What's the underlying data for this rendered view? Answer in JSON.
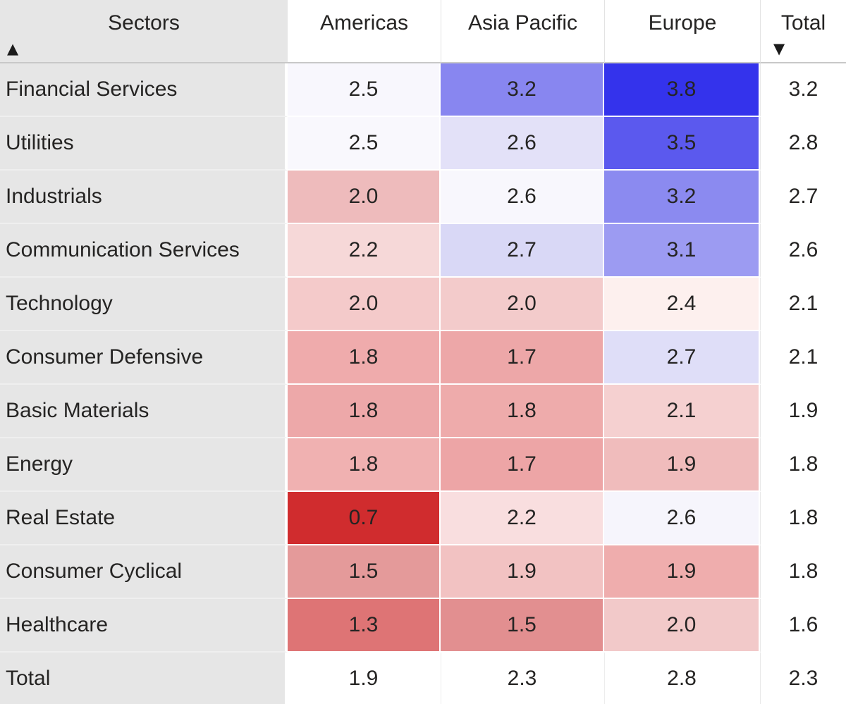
{
  "colors": {
    "row_header_bg": "#e6e6e6",
    "canvas_bg": "#ffffff",
    "header_underline": "#c8c8c8",
    "text": "#252423",
    "row_separator": "#efefef",
    "heat_low": "#d02c2e",
    "heat_mid": "#ffffff",
    "heat_high": "#3433ec"
  },
  "icons": {
    "sort_ascending": "▲",
    "sort_descending": "▼"
  },
  "header": {
    "row_group_label": "Sectors",
    "columns": [
      "Americas",
      "Asia Pacific",
      "Europe",
      "Total"
    ]
  },
  "table": {
    "rows": [
      {
        "label": "Financial Services",
        "cells": [
          "2.5",
          "3.2",
          "3.8",
          "3.2"
        ],
        "colors": [
          "#f8f7fd",
          "#8886f0",
          "#3433ec",
          "#ffffff"
        ]
      },
      {
        "label": "Utilities",
        "cells": [
          "2.5",
          "2.6",
          "3.5",
          "2.8"
        ],
        "colors": [
          "#f9f8fd",
          "#e3e1f8",
          "#5b59ee",
          "#ffffff"
        ]
      },
      {
        "label": "Industrials",
        "cells": [
          "2.0",
          "2.6",
          "3.2",
          "2.7"
        ],
        "colors": [
          "#eebbbc",
          "#f8f7fd",
          "#8b8af0",
          "#ffffff"
        ]
      },
      {
        "label": "Communication Services",
        "cells": [
          "2.2",
          "2.7",
          "3.1",
          "2.6"
        ],
        "colors": [
          "#f6d8d8",
          "#d9d8f6",
          "#9c9bf2",
          "#ffffff"
        ]
      },
      {
        "label": "Technology",
        "cells": [
          "2.0",
          "2.0",
          "2.4",
          "2.1"
        ],
        "colors": [
          "#f4caca",
          "#f3cbcb",
          "#fdf0ee",
          "#ffffff"
        ]
      },
      {
        "label": "Consumer Defensive",
        "cells": [
          "1.8",
          "1.7",
          "2.7",
          "2.1"
        ],
        "colors": [
          "#efabac",
          "#eda7a8",
          "#dfdef8",
          "#ffffff"
        ]
      },
      {
        "label": "Basic Materials",
        "cells": [
          "1.8",
          "1.8",
          "2.1",
          "1.9"
        ],
        "colors": [
          "#eda8a9",
          "#eeabab",
          "#f5d0d0",
          "#ffffff"
        ]
      },
      {
        "label": "Energy",
        "cells": [
          "1.8",
          "1.7",
          "1.9",
          "1.8"
        ],
        "colors": [
          "#f0b1b1",
          "#eda5a6",
          "#f0bcbc",
          "#ffffff"
        ]
      },
      {
        "label": "Real Estate",
        "cells": [
          "0.7",
          "2.2",
          "2.6",
          "1.8"
        ],
        "colors": [
          "#d02c2e",
          "#f9dedf",
          "#f6f5fc",
          "#ffffff"
        ]
      },
      {
        "label": "Consumer Cyclical",
        "cells": [
          "1.5",
          "1.9",
          "1.9",
          "1.8"
        ],
        "colors": [
          "#e49a9a",
          "#f2c2c2",
          "#efadad",
          "#ffffff"
        ]
      },
      {
        "label": "Healthcare",
        "cells": [
          "1.3",
          "1.5",
          "2.0",
          "1.6"
        ],
        "colors": [
          "#de7475",
          "#e28f90",
          "#f2c9c9",
          "#ffffff"
        ]
      },
      {
        "label": "Total",
        "cells": [
          "1.9",
          "2.3",
          "2.8",
          "2.3"
        ],
        "colors": [
          "#ffffff",
          "#ffffff",
          "#ffffff",
          "#ffffff"
        ]
      }
    ]
  },
  "chart_data": {
    "type": "heatmap",
    "row_dimension": "Sectors",
    "columns": [
      "Americas",
      "Asia Pacific",
      "Europe",
      "Total"
    ],
    "rows": [
      "Financial Services",
      "Utilities",
      "Industrials",
      "Communication Services",
      "Technology",
      "Consumer Defensive",
      "Basic Materials",
      "Energy",
      "Real Estate",
      "Consumer Cyclical",
      "Healthcare"
    ],
    "values": [
      [
        2.5,
        3.2,
        3.8,
        3.2
      ],
      [
        2.5,
        2.6,
        3.5,
        2.8
      ],
      [
        2.0,
        2.6,
        3.2,
        2.7
      ],
      [
        2.2,
        2.7,
        3.1,
        2.6
      ],
      [
        2.0,
        2.0,
        2.4,
        2.1
      ],
      [
        1.8,
        1.7,
        2.7,
        2.1
      ],
      [
        1.8,
        1.8,
        2.1,
        1.9
      ],
      [
        1.8,
        1.7,
        1.9,
        1.8
      ],
      [
        0.7,
        2.2,
        2.6,
        1.8
      ],
      [
        1.5,
        1.9,
        1.9,
        1.8
      ],
      [
        1.3,
        1.5,
        2.0,
        1.6
      ]
    ],
    "grand_total": {
      "label": "Total",
      "values": [
        1.9,
        2.3,
        2.8,
        2.3
      ]
    },
    "sort_indicators": {
      "sectors_column": "ascending",
      "total_column": "descending"
    },
    "colormap": {
      "type": "diverging",
      "low_color": "#d02c2e",
      "mid_color": "#ffffff",
      "high_color": "#3433ec",
      "applies_to": [
        "Americas",
        "Asia Pacific",
        "Europe"
      ]
    },
    "value_range_displayed": [
      0.7,
      3.8
    ],
    "legend_position": "none",
    "grid": "thin white gaps between cells"
  }
}
